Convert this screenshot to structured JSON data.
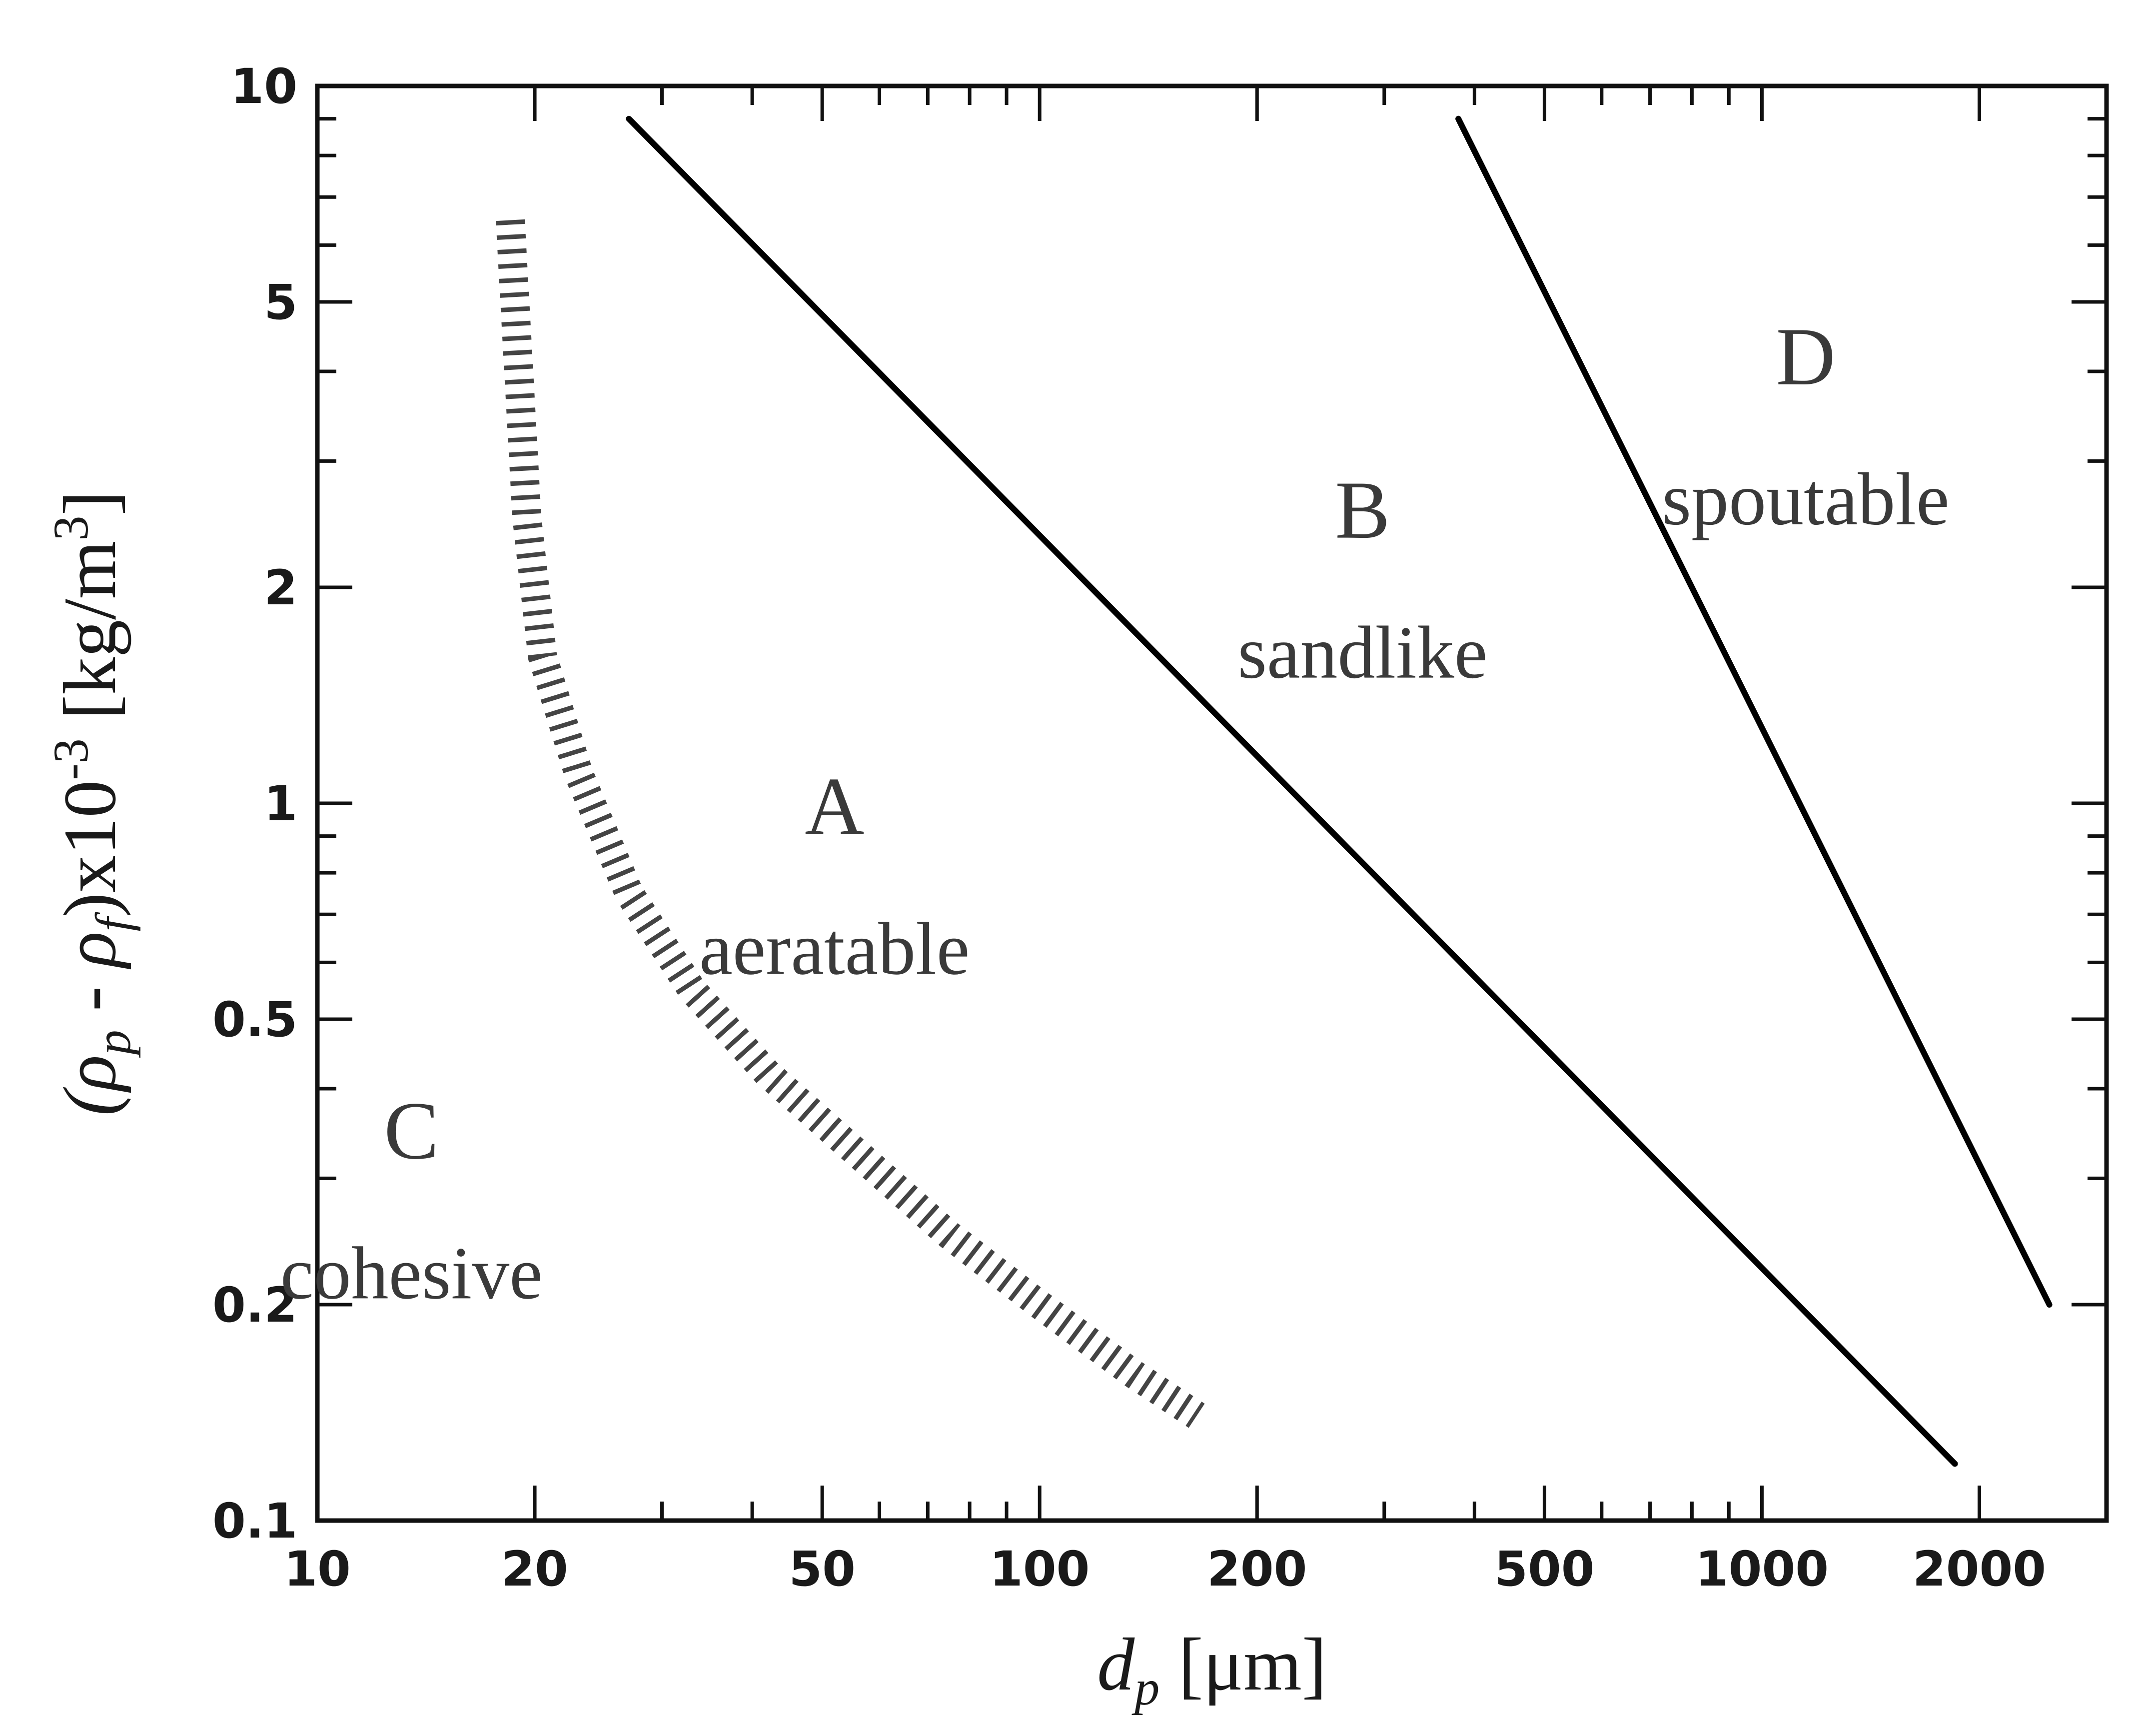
{
  "chart_data": {
    "type": "line",
    "xlabel": "d_p [μm]",
    "ylabel": "(ρ_p - ρ_f)x10^-3 [kg/m^3]",
    "x_scale": "log",
    "y_scale": "log",
    "xlim": [
      10,
      3000
    ],
    "ylim": [
      0.1,
      10
    ],
    "x_ticks": [
      10,
      20,
      50,
      100,
      200,
      500,
      1000,
      2000
    ],
    "x_tick_labels": [
      "10",
      "20",
      "50",
      "100",
      "200",
      "500",
      "1000",
      "2000"
    ],
    "y_ticks": [
      0.1,
      0.2,
      0.5,
      1,
      2,
      5,
      10
    ],
    "y_tick_labels": [
      "0.1",
      "0.2",
      "0.5",
      "1",
      "2",
      "5",
      "10"
    ],
    "grid": false,
    "series": [
      {
        "style": "dashed-band",
        "color": "#444444",
        "x": [
          18.5,
          19,
          19.5,
          20.5,
          23,
          27,
          33,
          42,
          55,
          75,
          100,
          135,
          165
        ],
        "y": [
          6.5,
          4.0,
          2.5,
          1.6,
          1.1,
          0.75,
          0.55,
          0.42,
          0.33,
          0.25,
          0.2,
          0.16,
          0.14
        ]
      },
      {
        "style": "solid",
        "color": "#000000",
        "x": [
          27,
          1850
        ],
        "y": [
          9.0,
          0.12
        ]
      },
      {
        "style": "solid",
        "color": "#000000",
        "x": [
          380,
          2500
        ],
        "y": [
          9.0,
          0.2
        ]
      }
    ],
    "annotations": [
      {
        "letter": "C",
        "word": "cohesive",
        "x": 13.5,
        "y": 0.3
      },
      {
        "letter": "A",
        "word": "aeratable",
        "x": 52,
        "y": 0.85
      },
      {
        "letter": "B",
        "word": "sandlike",
        "x": 280,
        "y": 2.2
      },
      {
        "letter": "D",
        "word": "spoutable",
        "x": 1150,
        "y": 3.6
      }
    ]
  }
}
